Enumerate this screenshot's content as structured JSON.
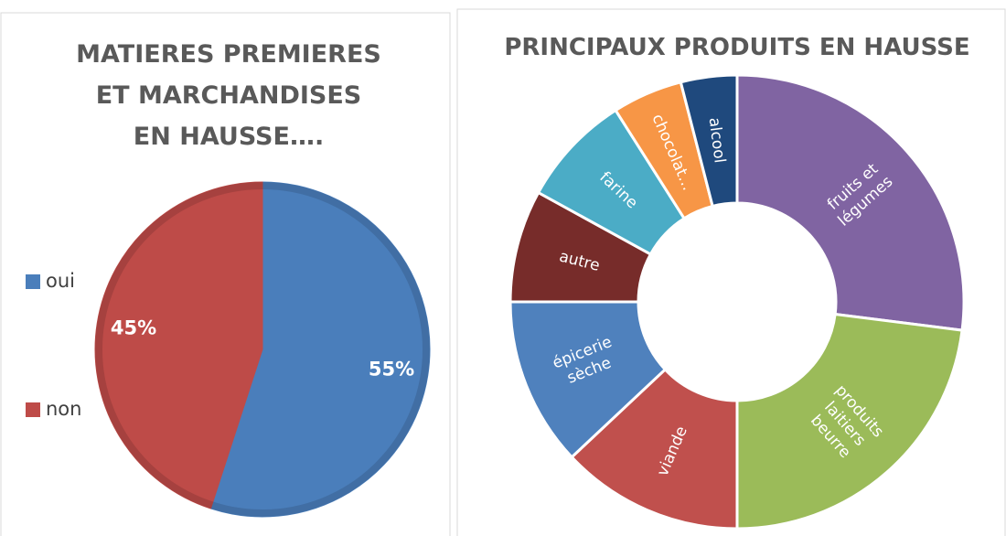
{
  "chart_data": [
    {
      "type": "pie",
      "title": "MATIERES PREMIERES\nET MARCHANDISES\nEN HAUSSE….",
      "categories": [
        "oui",
        "non"
      ],
      "values": [
        55,
        45
      ],
      "value_labels": [
        "55%",
        "45%"
      ],
      "colors": [
        "#4a7ebb",
        "#be4b48"
      ],
      "legend": "left"
    },
    {
      "type": "donut",
      "title": "PRINCIPAUX PRODUITS EN HAUSSE",
      "categories": [
        "fruits et\nlégumes",
        "produits\nlaitiers\nbeurre",
        "viande",
        "épicerie\nsèche",
        "autre",
        "farine",
        "chocolat…",
        "alcool"
      ],
      "values": [
        27,
        23,
        13,
        12,
        8,
        8,
        5,
        4
      ],
      "colors": [
        "#8064a2",
        "#9bbb59",
        "#c0504d",
        "#4f81bd",
        "#772c2a",
        "#4bacc6",
        "#f79646",
        "#1f497d"
      ]
    }
  ]
}
